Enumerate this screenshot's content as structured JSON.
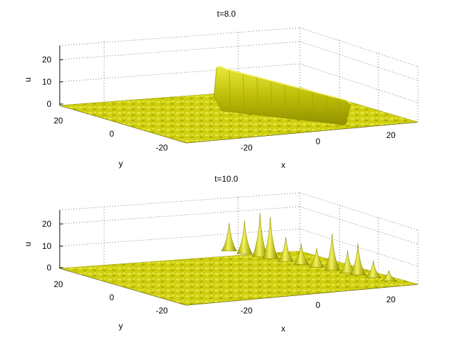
{
  "chart_data": [
    {
      "type": "surface",
      "title": "t=8.0",
      "xlabel": "x",
      "ylabel": "y",
      "zlabel": "u",
      "x_ticks": [
        "-20",
        "0",
        "20"
      ],
      "y_ticks": [
        "20",
        "0",
        "-20"
      ],
      "z_ticks": [
        "20",
        "10",
        "0"
      ],
      "xlim": [
        -30,
        30
      ],
      "ylim": [
        -25,
        25
      ],
      "zlim": [
        0,
        25
      ],
      "grid": true,
      "surface_color": "#d4d40a",
      "features": {
        "kind": "line-soliton",
        "x_range": [
          -12,
          18
        ],
        "peak_heights": [
          15,
          14.5,
          14,
          13.5,
          13,
          12.5,
          12,
          11.5,
          11,
          10.5,
          10,
          9.5,
          9
        ],
        "background_level": 0
      }
    },
    {
      "type": "surface",
      "title": "t=10.0",
      "xlabel": "x",
      "ylabel": "y",
      "zlabel": "u",
      "x_ticks": [
        "-20",
        "0",
        "20"
      ],
      "y_ticks": [
        "20",
        "0",
        "-20"
      ],
      "z_ticks": [
        "20",
        "10",
        "0"
      ],
      "xlim": [
        -30,
        30
      ],
      "ylim": [
        -25,
        25
      ],
      "zlim": [
        0,
        25
      ],
      "grid": true,
      "surface_color": "#d4d40a",
      "features": {
        "kind": "lump-peaks",
        "x_positions": [
          -12,
          -9,
          -6,
          -4,
          -1,
          2,
          5,
          8,
          11,
          13,
          16,
          19
        ],
        "peak_heights": [
          16,
          19,
          25,
          24,
          14,
          12,
          11,
          21,
          13,
          18,
          10,
          6
        ],
        "background_level": 0
      }
    }
  ]
}
